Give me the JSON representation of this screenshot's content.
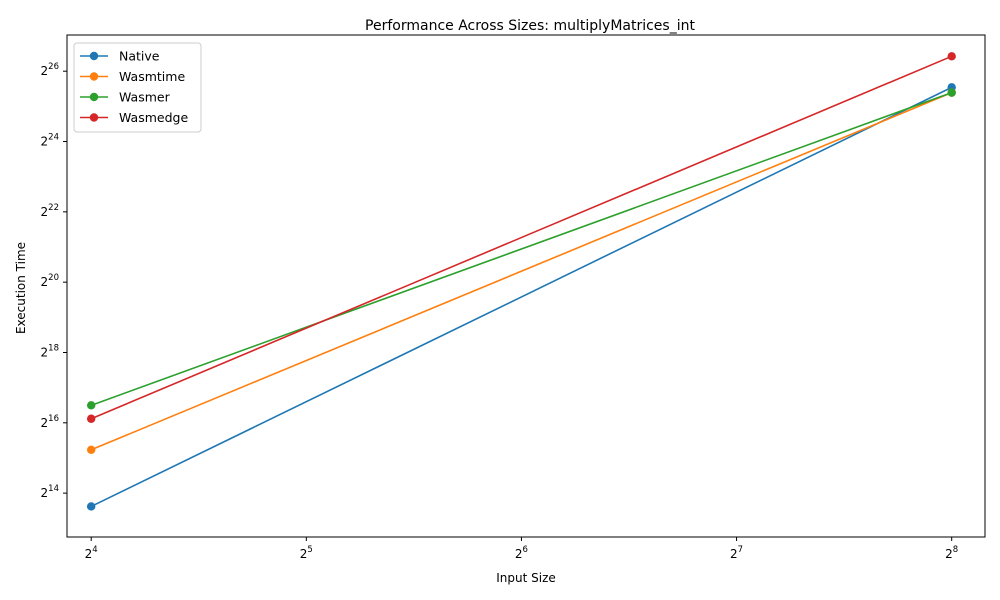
{
  "chart_data": {
    "type": "line",
    "title": "Performance Across Sizes: multiplyMatrices_int",
    "xlabel": "Input Size",
    "ylabel": "Execution Time",
    "x_scale": "log2",
    "y_scale": "log2",
    "x": [
      16,
      256
    ],
    "x_ticks": [
      {
        "base": "2",
        "exp": "4"
      },
      {
        "base": "2",
        "exp": "5"
      },
      {
        "base": "2",
        "exp": "6"
      },
      {
        "base": "2",
        "exp": "7"
      },
      {
        "base": "2",
        "exp": "8"
      }
    ],
    "y_ticks": [
      {
        "base": "2",
        "exp": "14"
      },
      {
        "base": "2",
        "exp": "16"
      },
      {
        "base": "2",
        "exp": "18"
      },
      {
        "base": "2",
        "exp": "20"
      },
      {
        "base": "2",
        "exp": "22"
      },
      {
        "base": "2",
        "exp": "24"
      },
      {
        "base": "2",
        "exp": "26"
      }
    ],
    "xlim": [
      14.8,
      285
    ],
    "ylim": [
      6900,
      137000000
    ],
    "grid": false,
    "legend_position": "top-left",
    "series": [
      {
        "name": "Native",
        "color": "#1f77b4",
        "values": [
          12600,
          48800000
        ]
      },
      {
        "name": "Wasmtime",
        "color": "#ff7f0e",
        "values": [
          38500,
          44000000
        ]
      },
      {
        "name": "Wasmer",
        "color": "#2ca02c",
        "values": [
          92500,
          44000000
        ]
      },
      {
        "name": "Wasmedge",
        "color": "#d62728",
        "values": [
          71000,
          90000000
        ]
      }
    ]
  }
}
